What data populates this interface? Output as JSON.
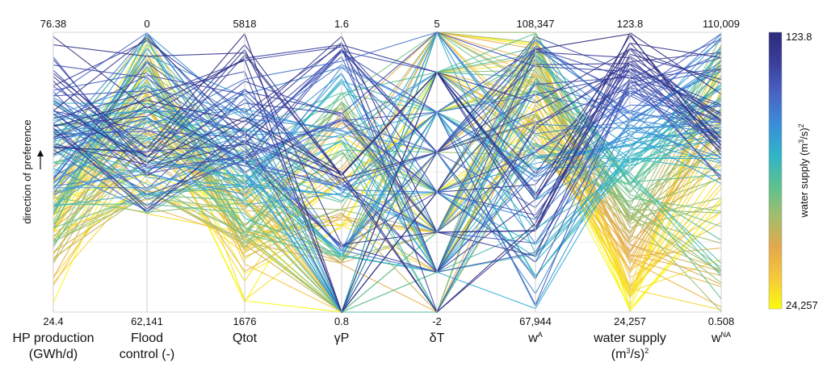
{
  "chart_data": {
    "type": "parallel-coordinates",
    "axes": [
      {
        "name": "HP production",
        "name_line2": "(GWh/d)",
        "top": "76.38",
        "bottom": "24.4",
        "min": 24.4,
        "max": 76.38
      },
      {
        "name": "Flood",
        "name_line2": "control (-)",
        "top": "0",
        "bottom": "62,141",
        "min": 62141,
        "max": 0
      },
      {
        "name": "Qtot",
        "name_line2": "",
        "top": "5818",
        "bottom": "1676",
        "min": 1676,
        "max": 5818
      },
      {
        "name": "γP",
        "name_line2": "",
        "top": "1.6",
        "bottom": "0.8",
        "min": 0.8,
        "max": 1.6
      },
      {
        "name": "δT",
        "name_line2": "",
        "top": "5",
        "bottom": "-2",
        "min": -2,
        "max": 5
      },
      {
        "name": "w",
        "name_sup": "A",
        "name_line2": "",
        "top": "108,347",
        "bottom": "67,944",
        "min": 67944,
        "max": 108347
      },
      {
        "name": "water supply",
        "name_line2": "(m",
        "name_line2_sup": "3",
        "name_line2_tail": "/s)",
        "name_line2_sup2": "2",
        "top": "123.8",
        "bottom": "24,257",
        "min": 24257,
        "max": 123.8
      },
      {
        "name": "w",
        "name_sup": "NA",
        "name_line2": "",
        "top": "110,009",
        "bottom": "0.508",
        "min": 0.508,
        "max": 110009
      }
    ],
    "y_direction_label": "direction of preference",
    "colorbar": {
      "title": "water supply (m",
      "title_sup": "3",
      "title_tail": "/s)",
      "title_sup2": "2",
      "top_label": "123.8",
      "bottom_label": "24,257",
      "colormap": "parula-reversed",
      "colors_bottom_to_top": [
        "#f9fb0e",
        "#f6c93a",
        "#e3a94b",
        "#a3bd6a",
        "#5cc18f",
        "#30b4c9",
        "#3a8ed9",
        "#4a63c4",
        "#3a3f9a",
        "#2c2a7a"
      ]
    },
    "grid": true,
    "num_solutions": 160
  }
}
